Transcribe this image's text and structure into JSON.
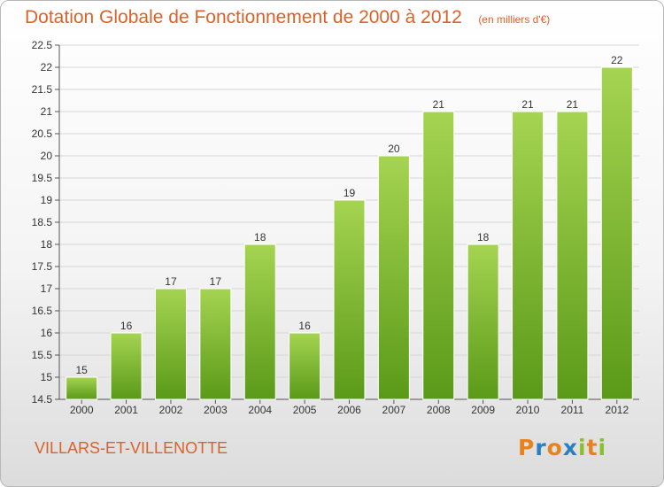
{
  "title": "Dotation Globale de Fonctionnement de 2000 à 2012",
  "unit_note": "(en milliers d'€)",
  "city": "VILLARS-ET-VILLENOTTE",
  "logo": {
    "letters": [
      "P",
      "r",
      "o",
      "x",
      "i",
      "t",
      "i"
    ],
    "colors": [
      "#e8821e",
      "#2a7fc1",
      "#e8821e",
      "#2a7fc1",
      "#8bbf2b",
      "#e8821e",
      "#8bbf2b"
    ]
  },
  "colors": {
    "title": "#d9622b",
    "bar_light": "#a5d451",
    "bar_dark": "#5a9a18",
    "grid": "#d6d6d6"
  },
  "chart_data": {
    "type": "bar",
    "categories": [
      "2000",
      "2001",
      "2002",
      "2003",
      "2004",
      "2005",
      "2006",
      "2007",
      "2008",
      "2009",
      "2010",
      "2011",
      "2012"
    ],
    "values": [
      15,
      16,
      17,
      17,
      18,
      16,
      19,
      20,
      21,
      18,
      21,
      21,
      22
    ],
    "data_labels": [
      "15",
      "16",
      "17",
      "17",
      "18",
      "16",
      "19",
      "20",
      "21",
      "18",
      "21",
      "21",
      "22"
    ],
    "y_ticks": [
      "14.5",
      "15",
      "15.5",
      "16",
      "16.5",
      "17",
      "17.5",
      "18",
      "18.5",
      "19",
      "19.5",
      "20",
      "20.5",
      "21",
      "21.5",
      "22",
      "22.5"
    ],
    "ylim": [
      14.5,
      22.5
    ],
    "grid": true,
    "xlabel": "",
    "ylabel": ""
  }
}
